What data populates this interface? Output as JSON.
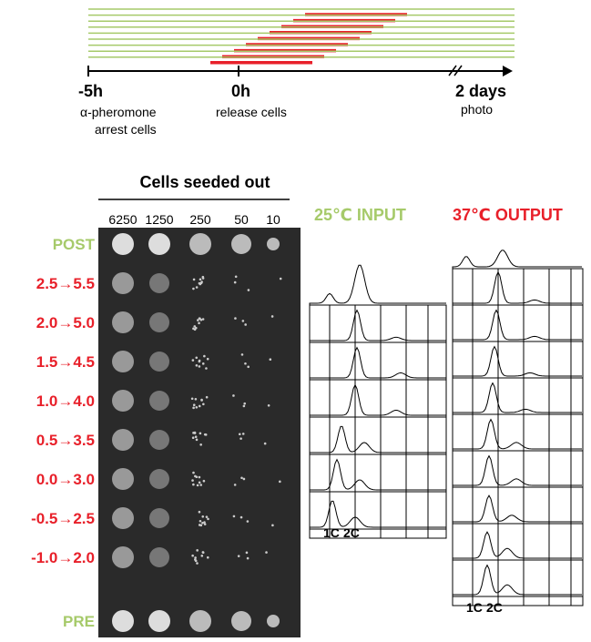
{
  "timeline": {
    "start_label": "-5h",
    "start_note_1": "α-pheromone",
    "start_note_2": "arrest cells",
    "release_label": "0h",
    "release_note": "release cells",
    "end_label": "2 days",
    "end_note": "photo"
  },
  "plate": {
    "title": "Cells seeded out",
    "dilutions": [
      "6250",
      "1250",
      "250",
      "50",
      "10"
    ],
    "rows": [
      "POST",
      "2.5→5.5",
      "2.0→5.0",
      "1.5→4.5",
      "1.0→4.0",
      "0.5→3.5",
      "0.0→3.0",
      "-0.5→2.5",
      "-1.0→2.0",
      "PRE"
    ]
  },
  "flow": {
    "input_title": "25℃ INPUT",
    "output_title": "37℃ OUTPUT",
    "input_axis": [
      "1C",
      "2C"
    ],
    "output_axis": [
      "1C",
      "2C"
    ]
  }
}
